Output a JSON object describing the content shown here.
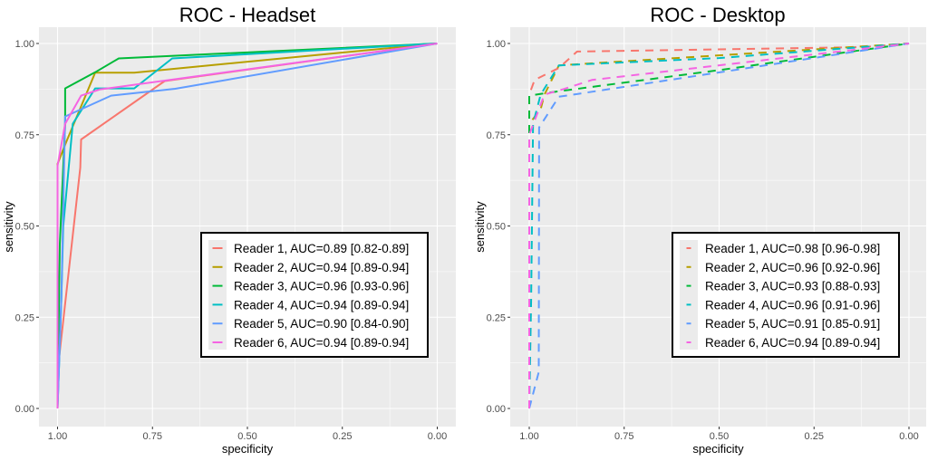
{
  "chart_data": [
    {
      "type": "line",
      "title": "ROC - Headset",
      "xlabel": "specificity",
      "ylabel": "sensitivity",
      "xlim": [
        1,
        0
      ],
      "ylim": [
        0,
        1
      ],
      "x_ticks": [
        "1.00",
        "0.75",
        "0.50",
        "0.25",
        "0.00"
      ],
      "y_ticks": [
        "0.00",
        "0.25",
        "0.50",
        "0.75",
        "1.00"
      ],
      "line_style": "solid",
      "grid": true,
      "legend_position": "bottom-right",
      "series": [
        {
          "name": "Reader 1, AUC=0.89 [0.82-0.89]",
          "color": "#F8766D",
          "points": [
            [
              1,
              0
            ],
            [
              1,
              0.1
            ],
            [
              0.94,
              0.66
            ],
            [
              0.938,
              0.737
            ],
            [
              0.718,
              0.897
            ],
            [
              0,
              1
            ]
          ]
        },
        {
          "name": "Reader 2, AUC=0.94 [0.89-0.94]",
          "color": "#B79F00",
          "points": [
            [
              1,
              0
            ],
            [
              1,
              0.67
            ],
            [
              0.977,
              0.73
            ],
            [
              0.901,
              0.92
            ],
            [
              0.798,
              0.92
            ],
            [
              0,
              1
            ]
          ]
        },
        {
          "name": "Reader 3, AUC=0.96 [0.93-0.96]",
          "color": "#00BA38",
          "points": [
            [
              1,
              0
            ],
            [
              0.994,
              0.45
            ],
            [
              0.98,
              0.78
            ],
            [
              0.98,
              0.877
            ],
            [
              0.901,
              0.921
            ],
            [
              0.839,
              0.959
            ],
            [
              0,
              1
            ]
          ]
        },
        {
          "name": "Reader 4, AUC=0.94 [0.89-0.94]",
          "color": "#00BFC4",
          "points": [
            [
              1,
              0
            ],
            [
              0.99,
              0.3
            ],
            [
              0.985,
              0.5
            ],
            [
              0.96,
              0.78
            ],
            [
              0.901,
              0.877
            ],
            [
              0.798,
              0.877
            ],
            [
              0.698,
              0.959
            ],
            [
              0,
              1
            ]
          ]
        },
        {
          "name": "Reader 5, AUC=0.90 [0.84-0.90]",
          "color": "#619CFF",
          "points": [
            [
              1,
              0
            ],
            [
              0.99,
              0.3
            ],
            [
              0.98,
              0.8
            ],
            [
              0.859,
              0.857
            ],
            [
              0.69,
              0.876
            ],
            [
              0,
              1
            ]
          ]
        },
        {
          "name": "Reader 6, AUC=0.94 [0.89-0.94]",
          "color": "#F564E3",
          "points": [
            [
              1,
              0
            ],
            [
              1,
              0.665
            ],
            [
              0.98,
              0.78
            ],
            [
              0.938,
              0.857
            ],
            [
              0.889,
              0.874
            ],
            [
              0,
              1
            ]
          ]
        }
      ]
    },
    {
      "type": "line",
      "title": "ROC - Desktop",
      "xlabel": "specificity",
      "ylabel": "sensitivity",
      "xlim": [
        1,
        0
      ],
      "ylim": [
        0,
        1
      ],
      "x_ticks": [
        "1.00",
        "0.75",
        "0.50",
        "0.25",
        "0.00"
      ],
      "y_ticks": [
        "0.00",
        "0.25",
        "0.50",
        "0.75",
        "1.00"
      ],
      "line_style": "dashed",
      "grid": true,
      "legend_position": "bottom-right",
      "series": [
        {
          "name": "Reader 1, AUC=0.98 [0.96-0.98]",
          "color": "#F8766D",
          "points": [
            [
              1,
              0
            ],
            [
              1,
              0.86
            ],
            [
              0.986,
              0.9
            ],
            [
              0.922,
              0.933
            ],
            [
              0.874,
              0.978
            ],
            [
              0.12,
              0.99
            ],
            [
              0,
              1
            ]
          ]
        },
        {
          "name": "Reader 2, AUC=0.96 [0.92-0.96]",
          "color": "#B79F00",
          "points": [
            [
              1,
              0
            ],
            [
              1,
              0.78
            ],
            [
              0.97,
              0.82
            ],
            [
              0.96,
              0.86
            ],
            [
              0.922,
              0.94
            ],
            [
              0,
              1
            ]
          ]
        },
        {
          "name": "Reader 3, AUC=0.93 [0.88-0.93]",
          "color": "#00BA38",
          "points": [
            [
              1,
              0
            ],
            [
              1,
              0.73
            ],
            [
              1,
              0.857
            ],
            [
              0.93,
              0.868
            ],
            [
              0.5,
              0.927
            ],
            [
              0,
              1
            ]
          ]
        },
        {
          "name": "Reader 4, AUC=0.96 [0.91-0.96]",
          "color": "#00BFC4",
          "points": [
            [
              1,
              0
            ],
            [
              0.995,
              0.3
            ],
            [
              0.99,
              0.78
            ],
            [
              0.97,
              0.86
            ],
            [
              0.922,
              0.94
            ],
            [
              0.5,
              0.96
            ],
            [
              0,
              1
            ]
          ]
        },
        {
          "name": "Reader 5, AUC=0.91 [0.85-0.91]",
          "color": "#619CFF",
          "points": [
            [
              1,
              0
            ],
            [
              0.975,
              0.1
            ],
            [
              0.974,
              0.77
            ],
            [
              0.922,
              0.854
            ],
            [
              0.883,
              0.86
            ],
            [
              0,
              1
            ]
          ]
        },
        {
          "name": "Reader 6, AUC=0.94 [0.89-0.94]",
          "color": "#F564E3",
          "points": [
            [
              1,
              0
            ],
            [
              1,
              0.75
            ],
            [
              0.96,
              0.86
            ],
            [
              0.91,
              0.875
            ],
            [
              0.835,
              0.9
            ],
            [
              0,
              1
            ]
          ]
        }
      ]
    }
  ]
}
